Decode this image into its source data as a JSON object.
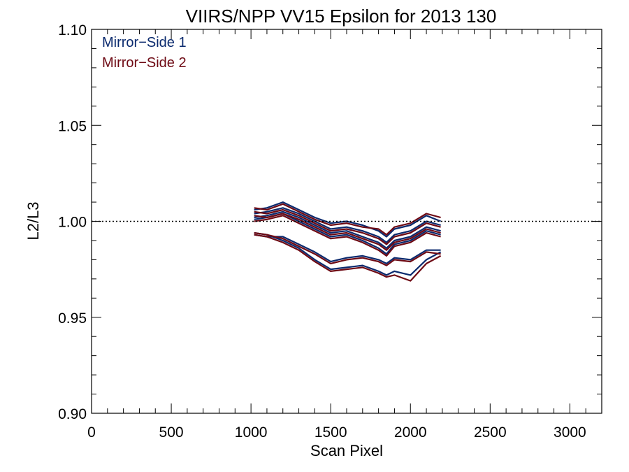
{
  "chart_data": {
    "type": "line",
    "title": "VIIRS/NPP VV15 Epsilon for 2013 130",
    "xlabel": "Scan Pixel",
    "ylabel": "L2/L3",
    "xlim": [
      0,
      3200
    ],
    "ylim": [
      0.9,
      1.1
    ],
    "xticks": [
      0,
      500,
      1000,
      1500,
      2000,
      2500,
      3000
    ],
    "xtick_labels": [
      "0",
      "500",
      "1000",
      "1500",
      "2000",
      "2500",
      "3000"
    ],
    "yticks": [
      0.9,
      0.95,
      1.0,
      1.05,
      1.1
    ],
    "ytick_labels": [
      "0.90",
      "0.95",
      "1.00",
      "1.05",
      "1.10"
    ],
    "reference_line": {
      "y": 1.0,
      "style": "dotted"
    },
    "grid": false,
    "legend": {
      "placement": "top-left",
      "entries": [
        "Mirror−Side 1",
        "Mirror−Side 2"
      ]
    },
    "colors": {
      "Mirror−Side 1": "#0a2a6e",
      "Mirror−Side 2": "#6e0a14"
    },
    "x": [
      1020,
      1100,
      1200,
      1300,
      1400,
      1500,
      1600,
      1700,
      1800,
      1850,
      1900,
      2000,
      2100,
      2190
    ],
    "series": [
      {
        "name": "Mirror−Side 1",
        "group": 1,
        "values": [
          1.006,
          1.007,
          1.01,
          1.006,
          1.002,
          0.999,
          1.0,
          0.998,
          0.995,
          0.992,
          0.996,
          0.998,
          1.003,
          1.0
        ]
      },
      {
        "name": "Mirror−Side 1",
        "group": 1,
        "values": [
          1.004,
          1.005,
          1.007,
          1.004,
          1.0,
          0.996,
          0.997,
          0.995,
          0.992,
          0.989,
          0.993,
          0.995,
          1.0,
          0.998
        ]
      },
      {
        "name": "Mirror−Side 1",
        "group": 1,
        "values": [
          1.002,
          1.003,
          1.005,
          1.002,
          0.998,
          0.994,
          0.995,
          0.992,
          0.989,
          0.986,
          0.99,
          0.992,
          0.997,
          0.995
        ]
      },
      {
        "name": "Mirror−Side 1",
        "group": 1,
        "values": [
          1.001,
          1.002,
          1.004,
          1.0,
          0.996,
          0.992,
          0.993,
          0.99,
          0.986,
          0.983,
          0.988,
          0.99,
          0.995,
          0.993
        ]
      },
      {
        "name": "Mirror−Side 1",
        "group": 1,
        "values": [
          0.994,
          0.993,
          0.99,
          0.986,
          0.98,
          0.975,
          0.976,
          0.977,
          0.974,
          0.972,
          0.974,
          0.972,
          0.98,
          0.984
        ]
      },
      {
        "name": "Mirror−Side 1",
        "group": 1,
        "values": [
          0.993,
          0.992,
          0.992,
          0.988,
          0.984,
          0.979,
          0.981,
          0.982,
          0.98,
          0.978,
          0.981,
          0.98,
          0.985,
          0.985
        ]
      },
      {
        "name": "Mirror−Side 2",
        "group": 2,
        "values": [
          1.007,
          1.006,
          1.009,
          1.005,
          1.001,
          0.998,
          0.999,
          0.997,
          0.996,
          0.993,
          0.997,
          0.999,
          1.004,
          1.002
        ]
      },
      {
        "name": "Mirror−Side 2",
        "group": 2,
        "values": [
          1.005,
          1.004,
          1.006,
          1.003,
          0.999,
          0.995,
          0.996,
          0.994,
          0.991,
          0.988,
          0.992,
          0.994,
          0.999,
          0.997
        ]
      },
      {
        "name": "Mirror−Side 2",
        "group": 2,
        "values": [
          1.003,
          1.002,
          1.004,
          1.001,
          0.997,
          0.993,
          0.994,
          0.991,
          0.988,
          0.985,
          0.989,
          0.991,
          0.996,
          0.994
        ]
      },
      {
        "name": "Mirror−Side 2",
        "group": 2,
        "values": [
          1.0,
          1.001,
          1.003,
          0.999,
          0.995,
          0.991,
          0.992,
          0.989,
          0.985,
          0.982,
          0.987,
          0.989,
          0.994,
          0.992
        ]
      },
      {
        "name": "Mirror−Side 2",
        "group": 2,
        "values": [
          0.993,
          0.992,
          0.989,
          0.985,
          0.979,
          0.974,
          0.975,
          0.976,
          0.973,
          0.971,
          0.972,
          0.969,
          0.978,
          0.982
        ]
      },
      {
        "name": "Mirror−Side 2",
        "group": 2,
        "values": [
          0.994,
          0.993,
          0.991,
          0.987,
          0.983,
          0.978,
          0.98,
          0.981,
          0.979,
          0.977,
          0.98,
          0.979,
          0.984,
          0.983
        ]
      }
    ]
  }
}
